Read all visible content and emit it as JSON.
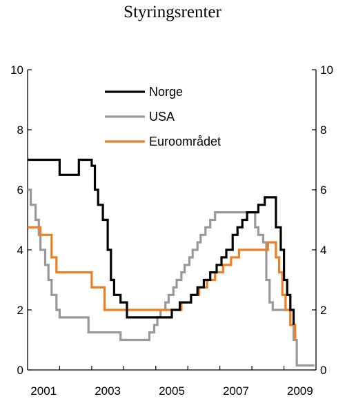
{
  "chart_data": {
    "type": "line",
    "title": "Styringsrenter",
    "xlabel": "",
    "ylabel": "",
    "xlim": [
      2000.0,
      2009.0
    ],
    "ylim": [
      0,
      10
    ],
    "yticks": [
      0,
      2,
      4,
      6,
      8,
      10
    ],
    "xtick_labels": [
      {
        "x": 2000.5,
        "label": "2001"
      },
      {
        "x": 2002.5,
        "label": "2003"
      },
      {
        "x": 2004.5,
        "label": "2005"
      },
      {
        "x": 2006.5,
        "label": "2007"
      },
      {
        "x": 2008.5,
        "label": "2009"
      }
    ],
    "xtick_marks": [
      2001,
      2002,
      2003,
      2004,
      2005,
      2006,
      2007,
      2008
    ],
    "legend_position": "top-center",
    "grid": false,
    "step": true,
    "series": [
      {
        "name": "Norge",
        "color": "#000000",
        "points": [
          [
            2000.0,
            7.0
          ],
          [
            2001.0,
            6.5
          ],
          [
            2001.6,
            7.0
          ],
          [
            2002.0,
            6.8
          ],
          [
            2002.1,
            6.0
          ],
          [
            2002.2,
            5.5
          ],
          [
            2002.35,
            5.0
          ],
          [
            2002.5,
            4.0
          ],
          [
            2002.6,
            3.0
          ],
          [
            2002.7,
            2.5
          ],
          [
            2002.9,
            2.25
          ],
          [
            2003.1,
            1.75
          ],
          [
            2004.5,
            2.0
          ],
          [
            2004.75,
            2.25
          ],
          [
            2005.1,
            2.5
          ],
          [
            2005.3,
            2.75
          ],
          [
            2005.5,
            3.0
          ],
          [
            2005.7,
            3.25
          ],
          [
            2005.9,
            3.5
          ],
          [
            2006.05,
            3.75
          ],
          [
            2006.2,
            4.0
          ],
          [
            2006.4,
            4.5
          ],
          [
            2006.55,
            4.75
          ],
          [
            2006.7,
            5.0
          ],
          [
            2006.85,
            5.25
          ],
          [
            2007.2,
            5.5
          ],
          [
            2007.4,
            5.75
          ],
          [
            2007.75,
            4.75
          ],
          [
            2007.9,
            4.0
          ],
          [
            2008.0,
            3.0
          ],
          [
            2008.1,
            2.5
          ],
          [
            2008.2,
            2.0
          ],
          [
            2008.3,
            1.5
          ]
        ]
      },
      {
        "name": "USA",
        "color": "#999999",
        "points": [
          [
            2000.0,
            6.0
          ],
          [
            2000.1,
            5.5
          ],
          [
            2000.25,
            5.0
          ],
          [
            2000.35,
            4.5
          ],
          [
            2000.4,
            4.0
          ],
          [
            2000.55,
            3.5
          ],
          [
            2000.65,
            3.0
          ],
          [
            2000.75,
            2.5
          ],
          [
            2000.9,
            2.0
          ],
          [
            2001.0,
            1.75
          ],
          [
            2001.9,
            1.25
          ],
          [
            2002.9,
            1.0
          ],
          [
            2003.8,
            1.25
          ],
          [
            2003.95,
            1.5
          ],
          [
            2004.05,
            1.75
          ],
          [
            2004.15,
            2.0
          ],
          [
            2004.3,
            2.25
          ],
          [
            2004.4,
            2.5
          ],
          [
            2004.55,
            2.75
          ],
          [
            2004.65,
            3.0
          ],
          [
            2004.8,
            3.25
          ],
          [
            2004.9,
            3.5
          ],
          [
            2005.05,
            3.75
          ],
          [
            2005.15,
            4.0
          ],
          [
            2005.3,
            4.25
          ],
          [
            2005.4,
            4.5
          ],
          [
            2005.55,
            4.75
          ],
          [
            2005.7,
            5.0
          ],
          [
            2005.85,
            5.25
          ],
          [
            2007.1,
            4.75
          ],
          [
            2007.2,
            4.5
          ],
          [
            2007.35,
            4.25
          ],
          [
            2007.45,
            3.0
          ],
          [
            2007.55,
            2.25
          ],
          [
            2007.65,
            2.0
          ],
          [
            2008.2,
            1.5
          ],
          [
            2008.3,
            1.0
          ],
          [
            2008.4,
            0.15
          ],
          [
            2008.95,
            0.15
          ]
        ]
      },
      {
        "name": "Euroområdet",
        "color": "#ef7f22",
        "points": [
          [
            2000.0,
            4.75
          ],
          [
            2000.4,
            4.5
          ],
          [
            2000.75,
            3.75
          ],
          [
            2000.9,
            3.25
          ],
          [
            2002.0,
            2.75
          ],
          [
            2002.4,
            2.0
          ],
          [
            2004.8,
            2.25
          ],
          [
            2005.1,
            2.5
          ],
          [
            2005.35,
            2.75
          ],
          [
            2005.6,
            3.0
          ],
          [
            2005.85,
            3.25
          ],
          [
            2006.1,
            3.5
          ],
          [
            2006.35,
            3.75
          ],
          [
            2006.6,
            4.0
          ],
          [
            2007.5,
            4.25
          ],
          [
            2007.75,
            3.75
          ],
          [
            2007.85,
            3.25
          ],
          [
            2007.95,
            2.5
          ],
          [
            2008.05,
            2.0
          ],
          [
            2008.2,
            1.5
          ],
          [
            2008.35,
            1.0
          ]
        ]
      }
    ]
  }
}
